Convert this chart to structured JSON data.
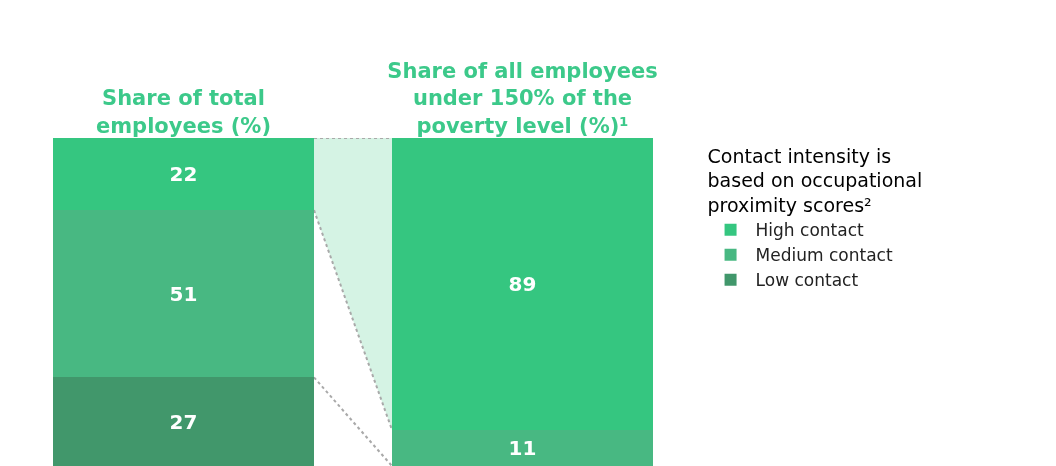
{
  "chart_data": {
    "type": "bar",
    "stacked": true,
    "categories": [
      "Share of total employees (%)",
      "Share of all employees under 150% of the poverty level (%)¹"
    ],
    "series": [
      {
        "name": "Low contact",
        "color": "#41976b",
        "values": [
          27,
          null
        ]
      },
      {
        "name": "Medium contact",
        "color": "#48b882",
        "values": [
          51,
          11
        ]
      },
      {
        "name": "High contact",
        "color": "#35c680",
        "values": [
          22,
          89
        ]
      }
    ],
    "ylim": [
      0,
      100
    ],
    "data_labels": true,
    "tick_labels": "x",
    "grid": false,
    "legend": "right",
    "legend_title": "Contact intensity is based on occupational proximity scores²"
  }
}
